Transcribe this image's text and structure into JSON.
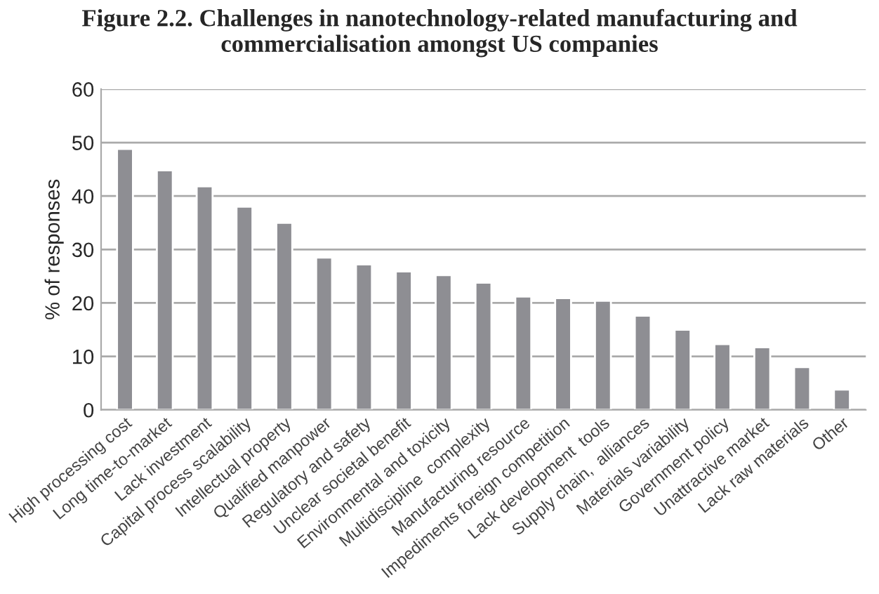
{
  "chart_data": {
    "type": "bar",
    "title": "Figure 2.2. Challenges in nanotechnology-related manufacturing and\ncommercialisation amongst US companies",
    "ylabel": "% of responses",
    "categories": [
      "High processing cost",
      "Long time-to-market",
      "Lack investment",
      "Capital process scalability",
      "Intellectual property",
      "Qualified manpower",
      "Regulatory and safety",
      "Unclear societal benefit",
      "Environmental and toxicity",
      "Multidiscipline  complexity",
      "Manufacturing resource",
      "Impediments foreign competition",
      "Lack development  tools",
      "Supply chain,  alliances",
      "Materials variability",
      "Government policy",
      "Unattractive market",
      "Lack raw materials",
      "Other"
    ],
    "values": [
      48.8,
      44.8,
      41.8,
      38,
      35,
      28.5,
      27.2,
      25.9,
      25.2,
      23.8,
      21.2,
      20.9,
      20.4,
      17.6,
      15.0,
      12.3,
      11.7,
      8.0,
      3.8
    ],
    "color": "#8e8e93",
    "ylim": [
      0,
      60
    ],
    "yticks": [
      0,
      10,
      20,
      30,
      40,
      50,
      60
    ],
    "grid": "y"
  }
}
